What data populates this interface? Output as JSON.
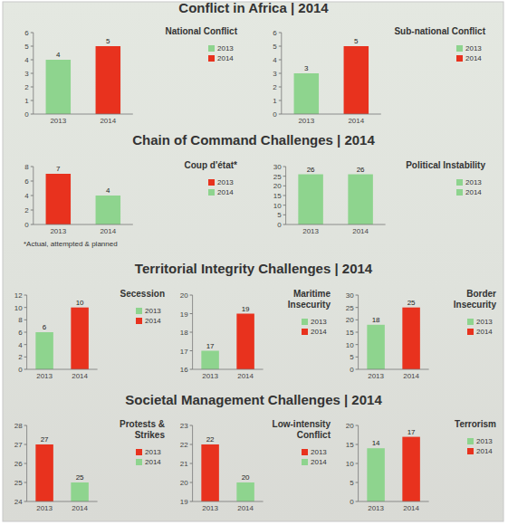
{
  "headings": [
    "Conflict in Africa | 2014",
    "Chain of Command Challenges | 2014",
    "Territorial Integrity Challenges | 2014",
    "Societal Management Challenges | 2014"
  ],
  "chart_data": [
    {
      "type": "bar",
      "title": "National Conflict",
      "categories": [
        "2013",
        "2014"
      ],
      "series": [
        {
          "name": "2013",
          "color": "#8ed48e",
          "values": [
            4,
            null
          ]
        },
        {
          "name": "2014",
          "color": "#e8321e",
          "values": [
            null,
            5
          ]
        }
      ],
      "ylim": [
        0,
        6
      ],
      "yticks": [
        0,
        1,
        2,
        3,
        4,
        5,
        6
      ],
      "grid": false,
      "legend": "right",
      "data_labels": true
    },
    {
      "type": "bar",
      "title": "Sub-national Conflict",
      "categories": [
        "2013",
        "2014"
      ],
      "series": [
        {
          "name": "2013",
          "color": "#8ed48e",
          "values": [
            3,
            null
          ]
        },
        {
          "name": "2014",
          "color": "#e8321e",
          "values": [
            null,
            5
          ]
        }
      ],
      "ylim": [
        0,
        6
      ],
      "yticks": [
        0,
        1,
        2,
        3,
        4,
        5,
        6
      ],
      "grid": false,
      "legend": "right",
      "data_labels": true
    },
    {
      "type": "bar",
      "title": "Coup d'état*",
      "categories": [
        "2013",
        "2014"
      ],
      "annotations": [
        "*Actual, attempted & planned"
      ],
      "series": [
        {
          "name": "2013",
          "color": "#e8321e",
          "values": [
            7,
            null
          ]
        },
        {
          "name": "2014",
          "color": "#8ed48e",
          "values": [
            null,
            4
          ]
        }
      ],
      "ylim": [
        0,
        8
      ],
      "yticks": [
        0,
        2,
        4,
        6,
        8
      ],
      "grid": false,
      "legend": "right",
      "data_labels": true
    },
    {
      "type": "bar",
      "title": "Political Instability",
      "categories": [
        "2013",
        "2014"
      ],
      "series": [
        {
          "name": "2013",
          "color": "#8ed48e",
          "values": [
            26,
            null
          ]
        },
        {
          "name": "2014",
          "color": "#8ed48e",
          "values": [
            null,
            26
          ]
        }
      ],
      "ylim": [
        0,
        30
      ],
      "yticks": [
        0,
        5,
        10,
        15,
        20,
        25,
        30
      ],
      "grid": false,
      "legend": "right",
      "data_labels": true
    },
    {
      "type": "bar",
      "title": "Secession",
      "categories": [
        "2013",
        "2014"
      ],
      "series": [
        {
          "name": "2013",
          "color": "#8ed48e",
          "values": [
            6,
            null
          ]
        },
        {
          "name": "2014",
          "color": "#e8321e",
          "values": [
            null,
            10
          ]
        }
      ],
      "ylim": [
        0,
        12
      ],
      "yticks": [
        0,
        2,
        4,
        6,
        8,
        10,
        12
      ],
      "grid": false,
      "legend": "right",
      "data_labels": true
    },
    {
      "type": "bar",
      "title": "Maritime Insecurity",
      "categories": [
        "2013",
        "2014"
      ],
      "series": [
        {
          "name": "2013",
          "color": "#8ed48e",
          "values": [
            17,
            null
          ]
        },
        {
          "name": "2014",
          "color": "#e8321e",
          "values": [
            null,
            19
          ]
        }
      ],
      "ylim": [
        16,
        20
      ],
      "yticks": [
        16,
        17,
        18,
        19,
        20
      ],
      "grid": false,
      "legend": "right",
      "data_labels": true
    },
    {
      "type": "bar",
      "title": "Border Insecurity",
      "categories": [
        "2013",
        "2014"
      ],
      "series": [
        {
          "name": "2013",
          "color": "#8ed48e",
          "values": [
            18,
            null
          ]
        },
        {
          "name": "2014",
          "color": "#e8321e",
          "values": [
            null,
            25
          ]
        }
      ],
      "ylim": [
        0,
        30
      ],
      "yticks": [
        0,
        5,
        10,
        15,
        20,
        25,
        30
      ],
      "grid": false,
      "legend": "right",
      "data_labels": true
    },
    {
      "type": "bar",
      "title": "Protests & Strikes",
      "categories": [
        "2013",
        "2014"
      ],
      "series": [
        {
          "name": "2013",
          "color": "#e8321e",
          "values": [
            27,
            null
          ]
        },
        {
          "name": "2014",
          "color": "#8ed48e",
          "values": [
            null,
            25
          ]
        }
      ],
      "ylim": [
        24,
        28
      ],
      "yticks": [
        24,
        25,
        26,
        27,
        28
      ],
      "grid": false,
      "legend": "right",
      "data_labels": true
    },
    {
      "type": "bar",
      "title": "Low-intensity Conflict",
      "categories": [
        "2013",
        "2014"
      ],
      "series": [
        {
          "name": "2013",
          "color": "#e8321e",
          "values": [
            22,
            null
          ]
        },
        {
          "name": "2014",
          "color": "#8ed48e",
          "values": [
            null,
            20
          ]
        }
      ],
      "ylim": [
        19,
        23
      ],
      "yticks": [
        19,
        20,
        21,
        22,
        23
      ],
      "grid": false,
      "legend": "right",
      "data_labels": true
    },
    {
      "type": "bar",
      "title": "Terrorism",
      "categories": [
        "2013",
        "2014"
      ],
      "series": [
        {
          "name": "2013",
          "color": "#8ed48e",
          "values": [
            14,
            null
          ]
        },
        {
          "name": "2014",
          "color": "#e8321e",
          "values": [
            null,
            17
          ]
        }
      ],
      "ylim": [
        0,
        20
      ],
      "yticks": [
        0,
        5,
        10,
        15,
        20
      ],
      "grid": false,
      "legend": "right",
      "data_labels": true
    }
  ]
}
